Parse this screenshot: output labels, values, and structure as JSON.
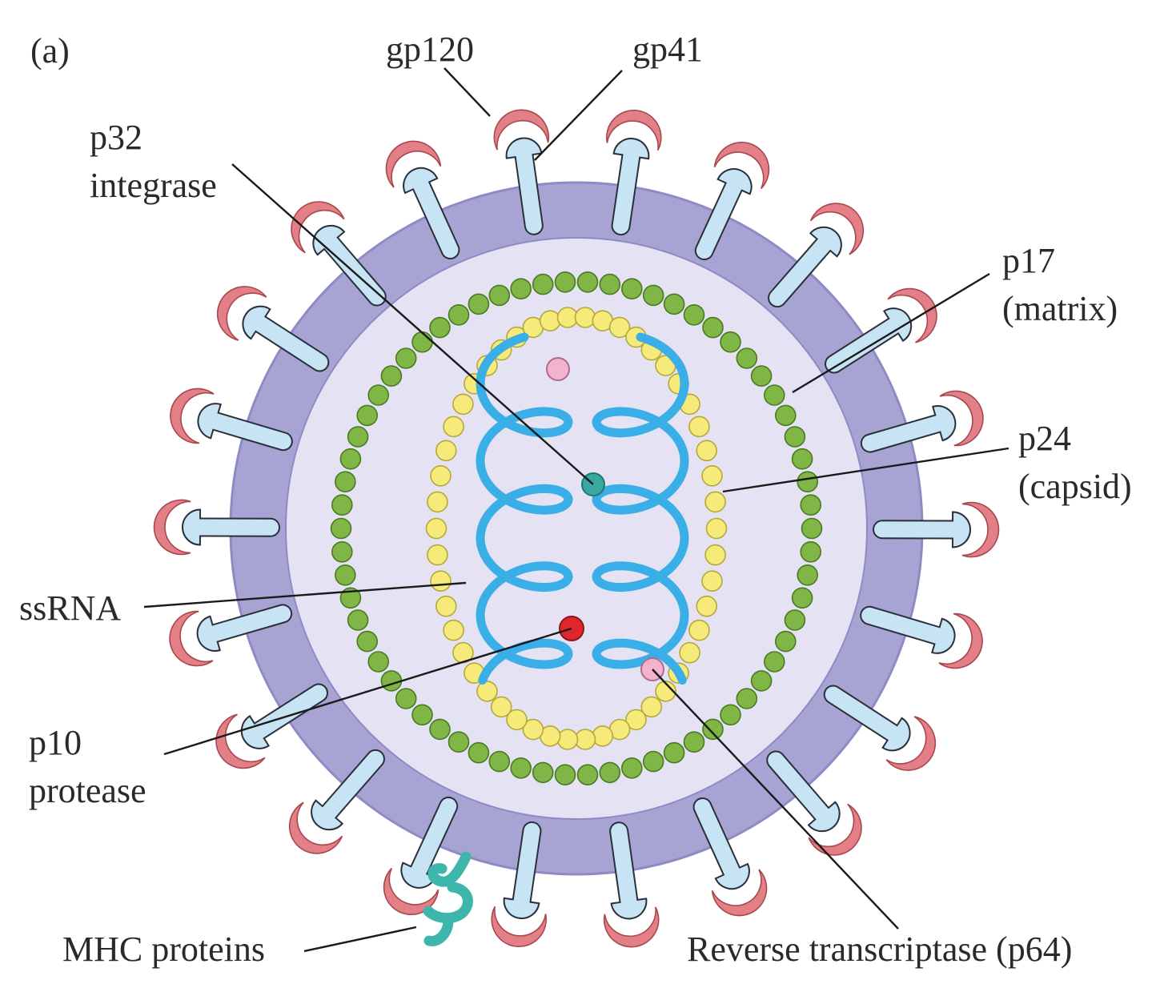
{
  "panel_letter": "(a)",
  "labels": {
    "gp120": "gp120",
    "gp41": "gp41",
    "p32_line1": "p32",
    "p32_line2": "integrase",
    "p17_line1": "p17",
    "p17_line2": "(matrix)",
    "p24_line1": "p24",
    "p24_line2": "(capsid)",
    "ssrna": "ssRNA",
    "p10_line1": "p10",
    "p10_line2": "protease",
    "mhc": "MHC proteins",
    "reverse_transcriptase": "Reverse transcriptase (p64)"
  },
  "colors": {
    "envelope": "#a7a4d4",
    "envelope_edge": "#8e8ac4",
    "interior": "#e5e3f3",
    "gp120_cap": "#e27f87",
    "gp41_stem": "#c6e4f4",
    "matrix_bead": "#7fb646",
    "capsid_bead": "#f6ea7a",
    "rna": "#3aaee6",
    "integrase": "#3aa8a0",
    "protease": "#e0262d",
    "reverse_transcriptase": "#f2b3cf",
    "mhc": "#3fb6ac"
  }
}
